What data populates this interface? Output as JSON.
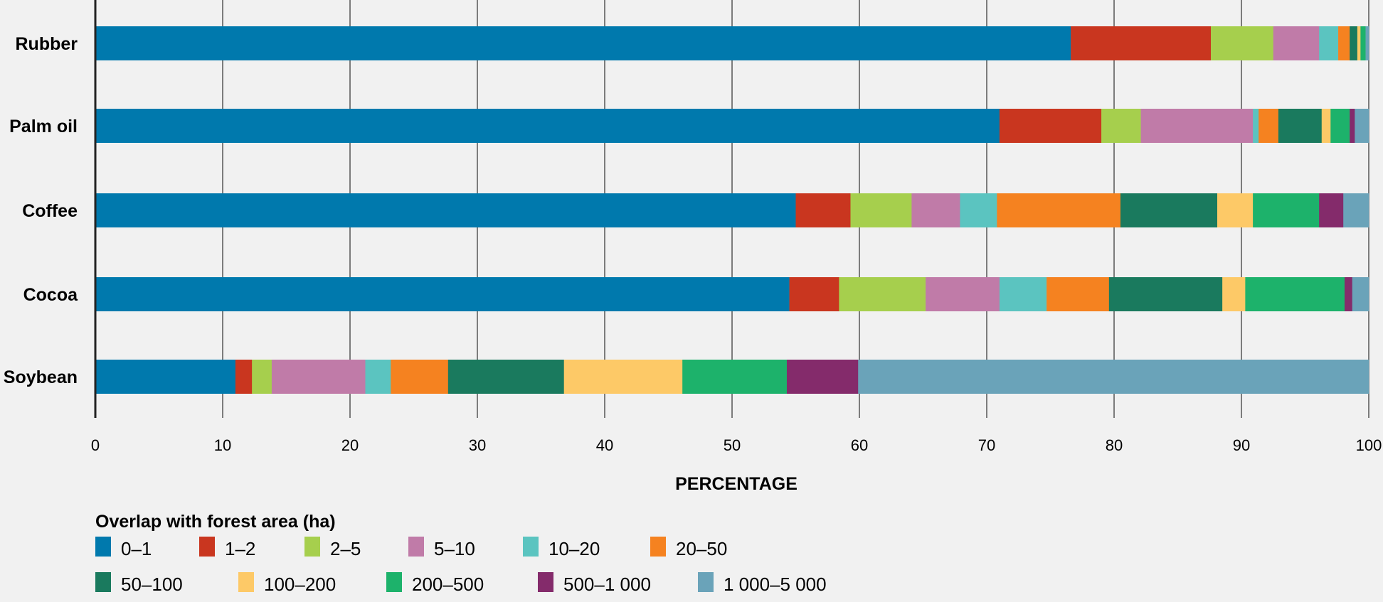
{
  "chart_data": {
    "type": "bar",
    "orientation": "horizontal",
    "stacked": true,
    "categories": [
      "Rubber",
      "Palm oil",
      "Coffee",
      "Cocoa",
      "Soybean"
    ],
    "xlabel": "PERCENTAGE",
    "ylabel": "",
    "xlim": [
      0,
      100
    ],
    "xticks": [
      "0",
      "10",
      "20",
      "30",
      "40",
      "50",
      "60",
      "70",
      "80",
      "90",
      "100"
    ],
    "grid": "vertical",
    "legend_title": "Overlap with forest area (ha)",
    "legend_position": "bottom",
    "series": [
      {
        "name": "0–1",
        "color": "#0079ad",
        "values": [
          76.6,
          71.0,
          55.0,
          54.5,
          11.0
        ]
      },
      {
        "name": "1–2",
        "color": "#c9361f",
        "values": [
          11.0,
          8.0,
          4.3,
          3.9,
          1.3
        ]
      },
      {
        "name": "2–5",
        "color": "#a6cf4d",
        "values": [
          4.9,
          3.1,
          4.8,
          6.8,
          1.55
        ]
      },
      {
        "name": "5–10",
        "color": "#c07ba8",
        "values": [
          3.6,
          8.8,
          3.8,
          5.8,
          7.35
        ]
      },
      {
        "name": "10–20",
        "color": "#5bc4c0",
        "values": [
          1.5,
          0.45,
          2.9,
          3.7,
          2.0
        ]
      },
      {
        "name": "20–50",
        "color": "#f58220",
        "values": [
          0.9,
          1.55,
          9.7,
          4.9,
          4.5
        ]
      },
      {
        "name": "50–100",
        "color": "#1a7a5e",
        "values": [
          0.6,
          3.4,
          7.6,
          8.9,
          9.1
        ]
      },
      {
        "name": "100–200",
        "color": "#fdc967",
        "values": [
          0.25,
          0.7,
          2.8,
          1.8,
          9.3
        ]
      },
      {
        "name": "200–500",
        "color": "#1db26b",
        "values": [
          0.4,
          1.5,
          5.2,
          7.8,
          8.2
        ]
      },
      {
        "name": "500–1 000",
        "color": "#842b6b",
        "values": [
          0.0,
          0.4,
          1.9,
          0.6,
          5.6
        ]
      },
      {
        "name": "1 000–5 000",
        "color": "#6aa3b9",
        "values": [
          0.25,
          1.1,
          2.0,
          1.3,
          40.1
        ]
      }
    ]
  }
}
